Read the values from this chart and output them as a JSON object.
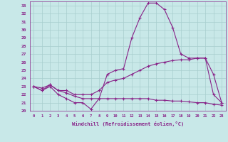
{
  "xlabel": "Windchill (Refroidissement éolien,°C)",
  "ylabel": "",
  "background_color": "#c8e8e8",
  "line_color": "#882288",
  "grid_color": "#a8cece",
  "xlim": [
    -0.5,
    23.5
  ],
  "ylim": [
    20,
    33.5
  ],
  "yticks": [
    20,
    21,
    22,
    23,
    24,
    25,
    26,
    27,
    28,
    29,
    30,
    31,
    32,
    33
  ],
  "xticks": [
    0,
    1,
    2,
    3,
    4,
    5,
    6,
    7,
    8,
    9,
    10,
    11,
    12,
    13,
    14,
    15,
    16,
    17,
    18,
    19,
    20,
    21,
    22,
    23
  ],
  "line1_x": [
    0,
    1,
    2,
    3,
    4,
    5,
    6,
    7,
    8,
    9,
    10,
    11,
    12,
    13,
    14,
    15,
    16,
    17,
    18,
    19,
    20,
    21,
    22,
    23
  ],
  "line1_y": [
    23.0,
    22.5,
    23.0,
    22.0,
    21.5,
    21.0,
    21.0,
    20.2,
    21.5,
    24.5,
    25.0,
    25.2,
    29.0,
    31.5,
    33.3,
    33.3,
    32.5,
    30.3,
    27.0,
    26.5,
    26.5,
    26.5,
    22.0,
    21.0
  ],
  "line2_x": [
    0,
    1,
    2,
    3,
    4,
    5,
    6,
    7,
    8,
    9,
    10,
    11,
    12,
    13,
    14,
    15,
    16,
    17,
    18,
    19,
    20,
    21,
    22,
    23
  ],
  "line2_y": [
    23.0,
    22.5,
    23.2,
    22.5,
    22.5,
    22.0,
    22.0,
    22.0,
    22.5,
    23.5,
    23.8,
    24.0,
    24.5,
    25.0,
    25.5,
    25.8,
    26.0,
    26.2,
    26.3,
    26.3,
    26.5,
    26.5,
    24.5,
    21.0
  ],
  "line3_x": [
    0,
    1,
    2,
    3,
    4,
    5,
    6,
    7,
    8,
    9,
    10,
    11,
    12,
    13,
    14,
    15,
    16,
    17,
    18,
    19,
    20,
    21,
    22,
    23
  ],
  "line3_y": [
    23.0,
    22.8,
    23.2,
    22.5,
    22.2,
    21.8,
    21.5,
    21.5,
    21.5,
    21.5,
    21.5,
    21.5,
    21.5,
    21.5,
    21.5,
    21.3,
    21.3,
    21.2,
    21.2,
    21.1,
    21.0,
    21.0,
    20.8,
    20.7
  ]
}
